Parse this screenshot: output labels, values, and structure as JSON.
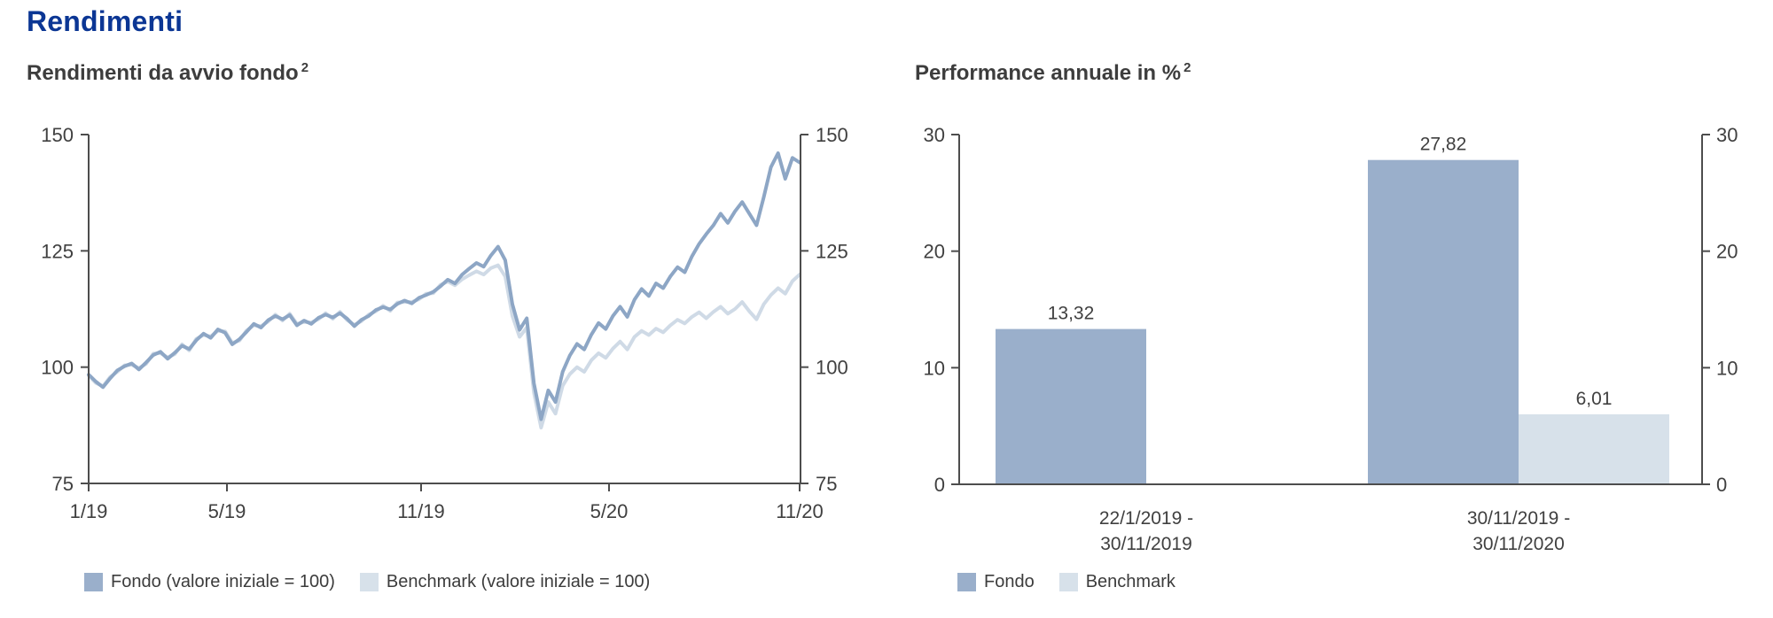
{
  "theme": {
    "background": "#ffffff",
    "title_color": "#0b3694",
    "text_color": "#3d3d3d",
    "axis_color": "#4d4d4d",
    "tick_label_color": "#404040",
    "fondo_color": "#9aafcb",
    "fondo_line_color": "#8da6c5",
    "benchmark_color": "#d7e1ea",
    "benchmark_line_color": "#cfdae6"
  },
  "header": {
    "title": "Rendimenti"
  },
  "left_chart": {
    "title": "Rendimenti da avvio fondo",
    "footnote_marker": "2",
    "legend": [
      {
        "label": "Fondo (valore iniziale = 100)",
        "color": "#9aafcb"
      },
      {
        "label": "Benchmark (valore iniziale = 100)",
        "color": "#d7e1ea"
      }
    ]
  },
  "right_chart": {
    "title": "Performance annuale in %",
    "footnote_marker": "2",
    "legend": [
      {
        "label": "Fondo",
        "color": "#9aafcb"
      },
      {
        "label": "Benchmark",
        "color": "#d7e1ea"
      }
    ]
  },
  "chart_data": [
    {
      "type": "line",
      "title": "Rendimenti da avvio fondo",
      "footnote_marker": "2",
      "ylabel": "",
      "xlabel": "",
      "ylim": [
        75,
        150
      ],
      "yticks": [
        150,
        125,
        100,
        75
      ],
      "y_axis_sides": "both",
      "grid": false,
      "xtick_labels": [
        "1/19",
        "5/19",
        "11/19",
        "5/20",
        "11/20"
      ],
      "legend_position": "bottom",
      "series": [
        {
          "name": "Benchmark (valore iniziale = 100)",
          "color": "#cfdae6",
          "values": [
            98.2,
            96.6,
            95.9,
            97.9,
            99.0,
            100.4,
            100.5,
            99.8,
            100.7,
            102.9,
            103.0,
            102.1,
            102.8,
            104.9,
            103.6,
            106.1,
            106.9,
            106.6,
            107.8,
            107.7,
            105.2,
            105.7,
            107.9,
            109.0,
            108.8,
            109.8,
            111.3,
            110.0,
            111.5,
            109.3,
            109.7,
            109.6,
            110.3,
            111.6,
            110.4,
            111.9,
            110.1,
            109.1,
            109.9,
            111.3,
            112.0,
            113.2,
            112.1,
            113.9,
            114.0,
            114.0,
            114.6,
            115.8,
            115.9,
            117.7,
            118.4,
            117.6,
            118.9,
            119.8,
            120.6,
            119.9,
            121.3,
            121.9,
            119.5,
            111.0,
            106.5,
            108.5,
            94.5,
            87.0,
            92.5,
            90.0,
            96.0,
            98.5,
            100.0,
            99.0,
            101.5,
            103.0,
            102.0,
            104.0,
            105.5,
            103.8,
            106.5,
            107.8,
            106.9,
            108.3,
            107.5,
            109.0,
            110.2,
            109.4,
            110.8,
            111.8,
            110.5,
            111.9,
            113.0,
            111.5,
            112.5,
            114.0,
            112.0,
            110.3,
            113.5,
            115.5,
            117.0,
            115.8,
            118.5,
            119.9
          ]
        },
        {
          "name": "Fondo (valore iniziale = 100)",
          "color": "#8da6c5",
          "values": [
            98.4,
            96.9,
            95.7,
            97.6,
            99.3,
            100.2,
            100.8,
            99.5,
            101.0,
            102.6,
            103.3,
            101.8,
            103.1,
            104.6,
            103.9,
            105.8,
            107.2,
            106.3,
            108.1,
            107.4,
            104.9,
            106.0,
            107.6,
            109.3,
            108.5,
            110.1,
            111.0,
            110.3,
            111.2,
            109.0,
            110.0,
            109.3,
            110.6,
            111.3,
            110.7,
            111.6,
            110.4,
            108.8,
            110.2,
            111.0,
            112.3,
            112.9,
            112.4,
            113.6,
            114.3,
            113.7,
            114.9,
            115.5,
            116.2,
            117.4,
            118.8,
            118.0,
            119.9,
            121.2,
            122.4,
            121.6,
            124.0,
            125.9,
            123.0,
            113.5,
            108.0,
            110.5,
            96.5,
            88.8,
            95.0,
            92.5,
            99.0,
            102.5,
            105.0,
            103.8,
            107.0,
            109.5,
            108.2,
            111.0,
            113.0,
            110.8,
            114.5,
            116.8,
            115.3,
            118.0,
            117.0,
            119.5,
            121.5,
            120.4,
            123.8,
            126.5,
            128.6,
            130.5,
            133.0,
            131.0,
            133.5,
            135.5,
            133.0,
            130.5,
            136.5,
            143.0,
            146.0,
            140.5,
            145.0,
            144.0
          ]
        }
      ]
    },
    {
      "type": "bar",
      "title": "Performance annuale in %",
      "footnote_marker": "2",
      "ylabel": "",
      "xlabel": "",
      "ylim": [
        0,
        30
      ],
      "yticks": [
        30,
        20,
        10,
        0
      ],
      "y_axis_sides": "both",
      "grid": false,
      "categories": [
        [
          "22/1/2019 -",
          "30/11/2019"
        ],
        [
          "30/11/2019 -",
          "30/11/2020"
        ]
      ],
      "legend_position": "bottom",
      "series": [
        {
          "name": "Fondo",
          "color": "#9aafcb",
          "values": [
            13.32,
            27.82
          ],
          "labels": [
            "13,32",
            "27,82"
          ]
        },
        {
          "name": "Benchmark",
          "color": "#d7e1ea",
          "values": [
            null,
            6.01
          ],
          "labels": [
            null,
            "6,01"
          ]
        }
      ]
    }
  ]
}
